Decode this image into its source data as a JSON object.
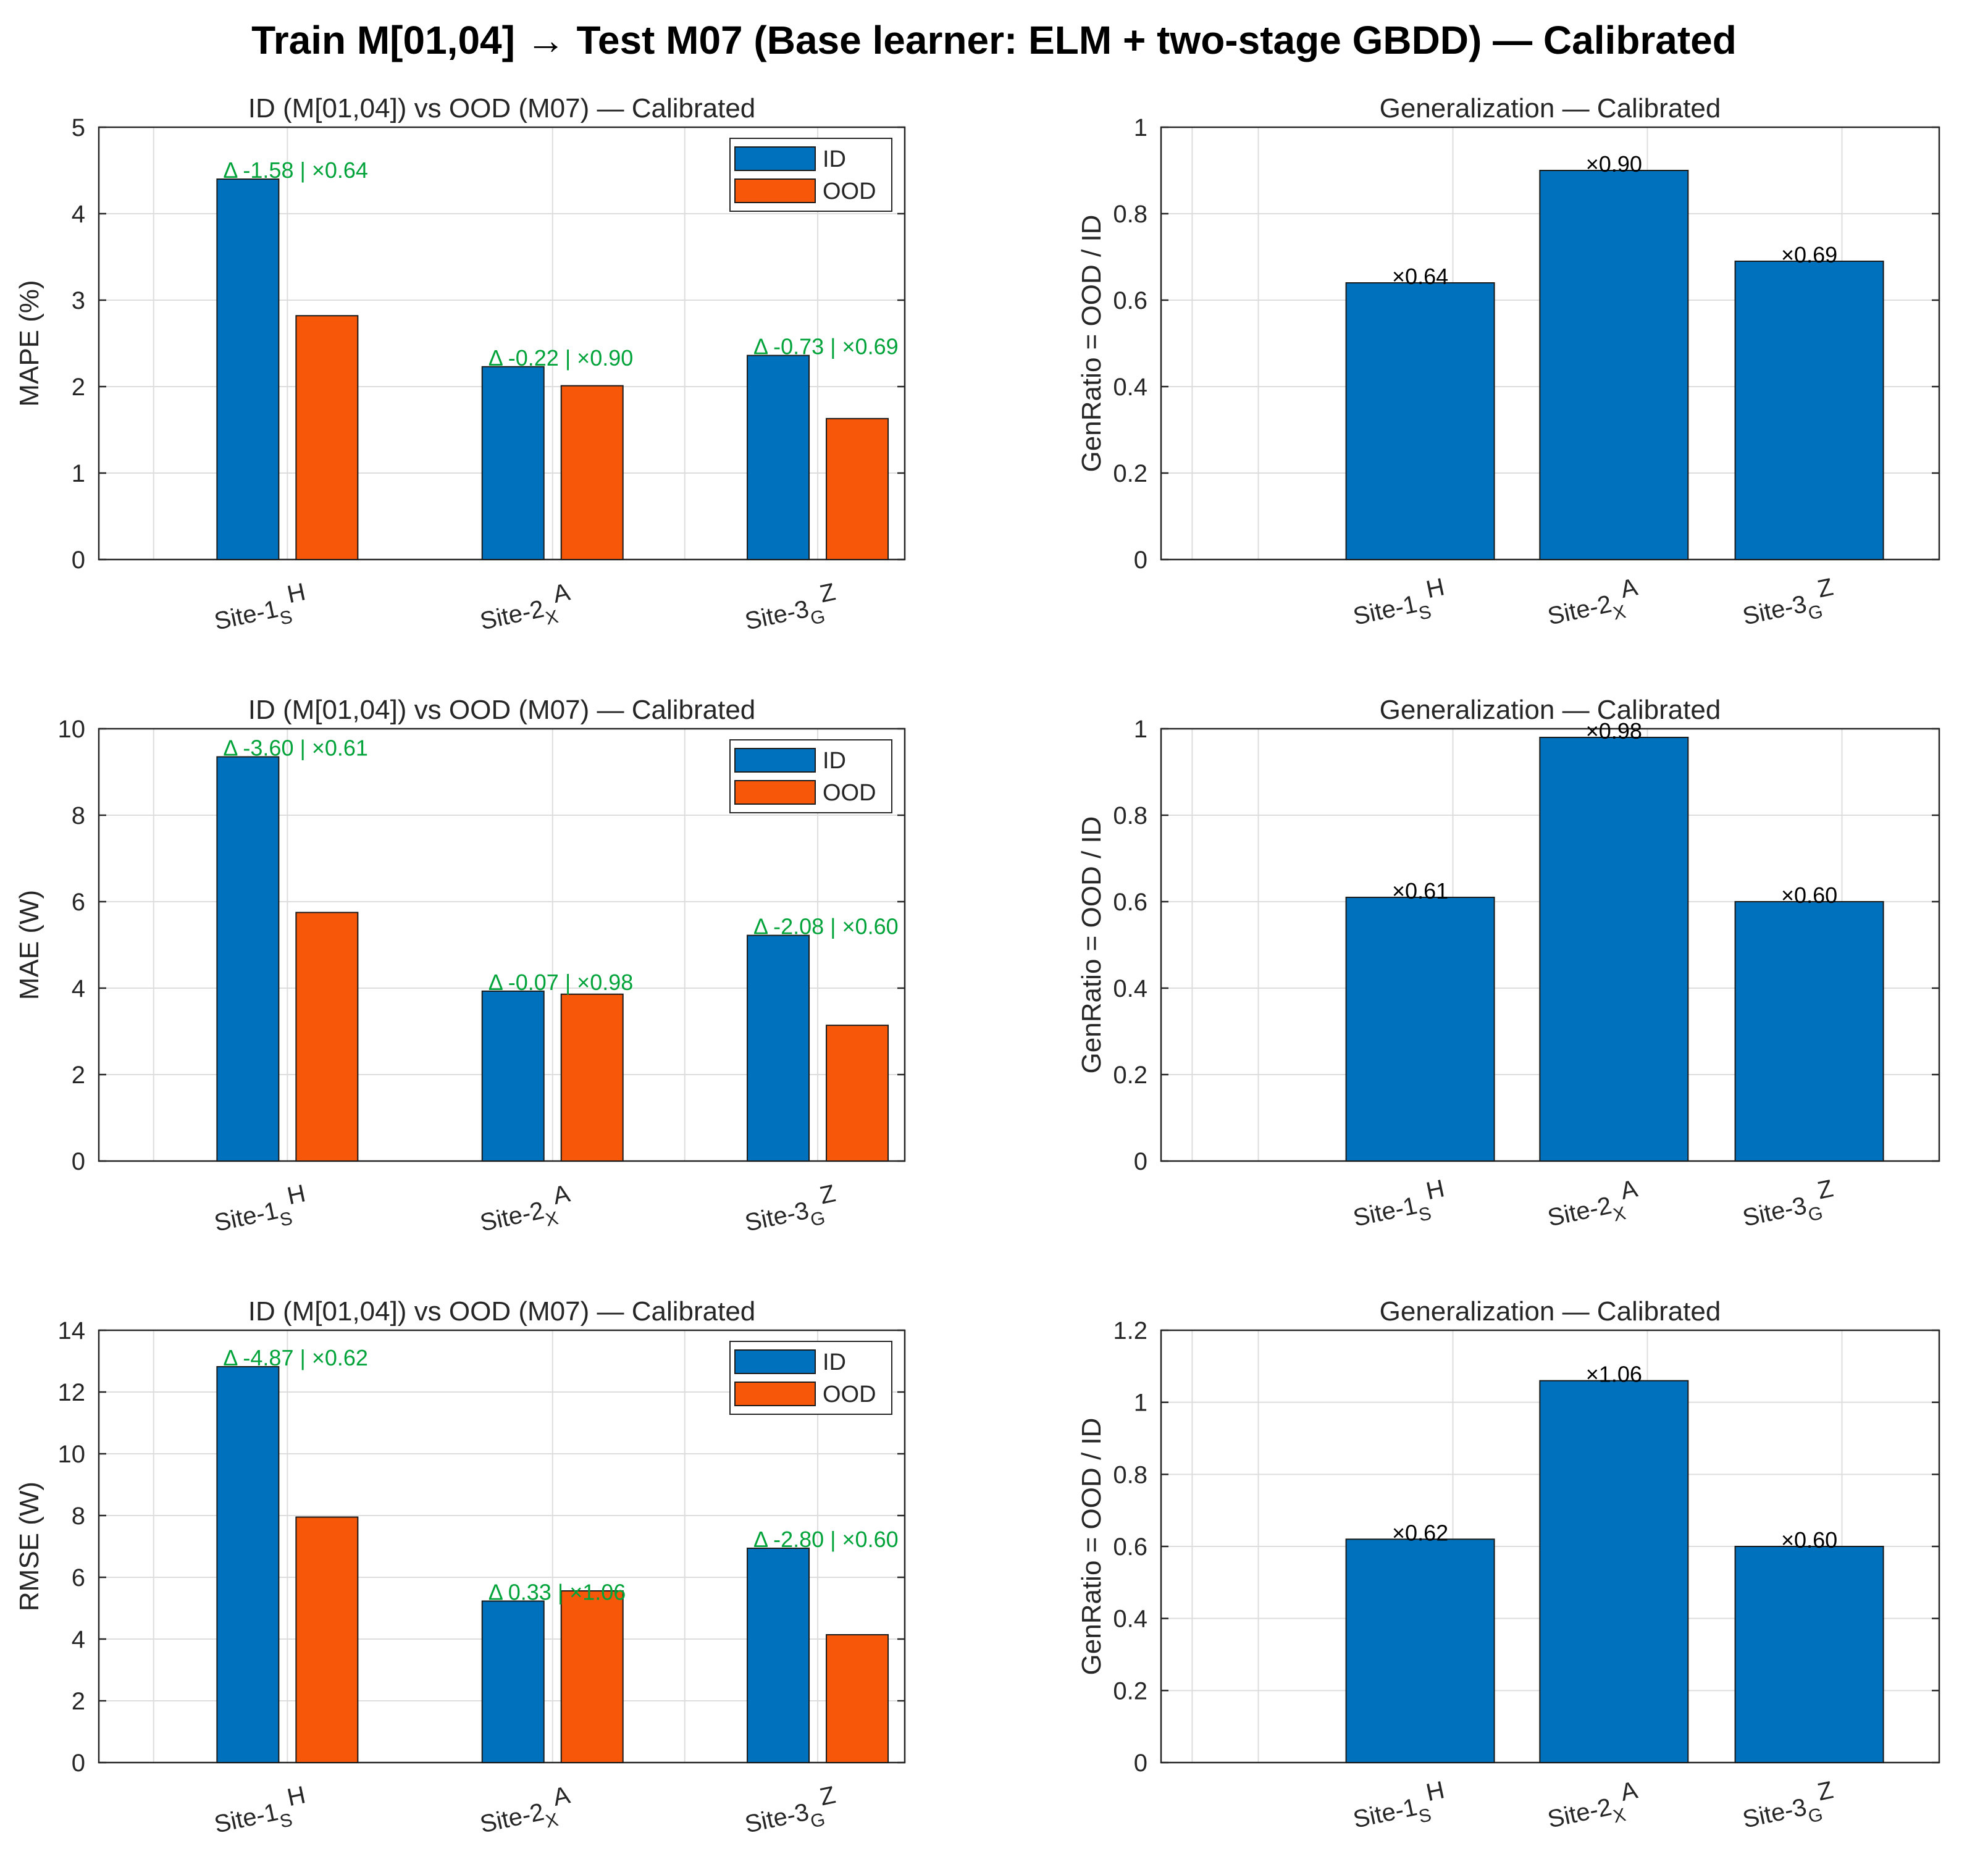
{
  "figure": {
    "title": "Train M[01,04] → Test M07  (Base learner: ELM + two-stage GBDD) — Calibrated"
  },
  "colors": {
    "id": "#0072BD",
    "ood": "#F75709",
    "annotation": "#00A33A",
    "grid": "#DDDDDD",
    "axis": "#262626"
  },
  "chart_data": [
    {
      "type": "bar",
      "panel": "left-1",
      "title": "ID (M[01,04]) vs OOD (M07) — Calibrated",
      "xlabel": "",
      "ylabel": "MAPE (%)",
      "ylim": [
        0,
        5
      ],
      "yticks": [
        0,
        1,
        2,
        3,
        4,
        5
      ],
      "ytick_labels": [
        "0",
        "1",
        "2",
        "3",
        "4",
        "5"
      ],
      "categories": [
        {
          "main": "Site-1",
          "sub": "S",
          "sup": "H"
        },
        {
          "main": "Site-2",
          "sub": "X",
          "sup": "A"
        },
        {
          "main": "Site-3",
          "sub": "G",
          "sup": "Z"
        }
      ],
      "series": [
        {
          "name": "ID",
          "values": [
            4.4,
            2.23,
            2.36
          ]
        },
        {
          "name": "OOD",
          "values": [
            2.82,
            2.01,
            1.63
          ]
        }
      ],
      "annotations": [
        "Δ -1.58 | ×0.64",
        "Δ -0.22 | ×0.90",
        "Δ -0.73 | ×0.69"
      ],
      "legend": {
        "entries": [
          "ID",
          "OOD"
        ],
        "location": "top-right"
      },
      "grid": true
    },
    {
      "type": "bar",
      "panel": "right-1",
      "title": "Generalization — Calibrated",
      "xlabel": "",
      "ylabel": "GenRatio = OOD / ID",
      "ylim": [
        0,
        1
      ],
      "yticks": [
        0,
        0.2,
        0.4,
        0.6,
        0.8,
        1
      ],
      "ytick_labels": [
        "0",
        "0.2",
        "0.4",
        "0.6",
        "0.8",
        "1"
      ],
      "categories": [
        {
          "main": "Site-1",
          "sub": "S",
          "sup": "H"
        },
        {
          "main": "Site-2",
          "sub": "X",
          "sup": "A"
        },
        {
          "main": "Site-3",
          "sub": "G",
          "sup": "Z"
        }
      ],
      "values": [
        0.64,
        0.9,
        0.69
      ],
      "labels": [
        "×0.64",
        "×0.90",
        "×0.69"
      ],
      "grid": true
    },
    {
      "type": "bar",
      "panel": "left-2",
      "title": "ID (M[01,04]) vs OOD (M07) — Calibrated",
      "xlabel": "",
      "ylabel": "MAE (W)",
      "ylim": [
        0,
        10
      ],
      "yticks": [
        0,
        2,
        4,
        6,
        8,
        10
      ],
      "ytick_labels": [
        "0",
        "2",
        "4",
        "6",
        "8",
        "10"
      ],
      "categories": [
        {
          "main": "Site-1",
          "sub": "S",
          "sup": "H"
        },
        {
          "main": "Site-2",
          "sub": "X",
          "sup": "A"
        },
        {
          "main": "Site-3",
          "sub": "G",
          "sup": "Z"
        }
      ],
      "series": [
        {
          "name": "ID",
          "values": [
            9.35,
            3.93,
            5.22
          ]
        },
        {
          "name": "OOD",
          "values": [
            5.75,
            3.86,
            3.14
          ]
        }
      ],
      "annotations": [
        "Δ -3.60 | ×0.61",
        "Δ -0.07 | ×0.98",
        "Δ -2.08 | ×0.60"
      ],
      "legend": {
        "entries": [
          "ID",
          "OOD"
        ],
        "location": "top-right"
      },
      "grid": true
    },
    {
      "type": "bar",
      "panel": "right-2",
      "title": "Generalization — Calibrated",
      "xlabel": "",
      "ylabel": "GenRatio = OOD / ID",
      "ylim": [
        0,
        1
      ],
      "yticks": [
        0,
        0.2,
        0.4,
        0.6,
        0.8,
        1
      ],
      "ytick_labels": [
        "0",
        "0.2",
        "0.4",
        "0.6",
        "0.8",
        "1"
      ],
      "categories": [
        {
          "main": "Site-1",
          "sub": "S",
          "sup": "H"
        },
        {
          "main": "Site-2",
          "sub": "X",
          "sup": "A"
        },
        {
          "main": "Site-3",
          "sub": "G",
          "sup": "Z"
        }
      ],
      "values": [
        0.61,
        0.98,
        0.6
      ],
      "labels": [
        "×0.61",
        "×0.98",
        "×0.60"
      ],
      "grid": true
    },
    {
      "type": "bar",
      "panel": "left-3",
      "title": "ID (M[01,04]) vs OOD (M07) — Calibrated",
      "xlabel": "",
      "ylabel": "RMSE (W)",
      "ylim": [
        0,
        14
      ],
      "yticks": [
        0,
        2,
        4,
        6,
        8,
        10,
        12,
        14
      ],
      "ytick_labels": [
        "0",
        "2",
        "4",
        "6",
        "8",
        "10",
        "12",
        "14"
      ],
      "categories": [
        {
          "main": "Site-1",
          "sub": "S",
          "sup": "H"
        },
        {
          "main": "Site-2",
          "sub": "X",
          "sup": "A"
        },
        {
          "main": "Site-3",
          "sub": "G",
          "sup": "Z"
        }
      ],
      "series": [
        {
          "name": "ID",
          "values": [
            12.82,
            5.23,
            6.94
          ]
        },
        {
          "name": "OOD",
          "values": [
            7.95,
            5.56,
            4.14
          ]
        }
      ],
      "annotations": [
        "Δ -4.87 | ×0.62",
        "Δ 0.33 | ×1.06",
        "Δ -2.80 | ×0.60"
      ],
      "legend": {
        "entries": [
          "ID",
          "OOD"
        ],
        "location": "top-right"
      },
      "grid": true
    },
    {
      "type": "bar",
      "panel": "right-3",
      "title": "Generalization — Calibrated",
      "xlabel": "",
      "ylabel": "GenRatio = OOD / ID",
      "ylim": [
        0,
        1.2
      ],
      "yticks": [
        0,
        0.2,
        0.4,
        0.6,
        0.8,
        1,
        1.2
      ],
      "ytick_labels": [
        "0",
        "0.2",
        "0.4",
        "0.6",
        "0.8",
        "1",
        "1.2"
      ],
      "categories": [
        {
          "main": "Site-1",
          "sub": "S",
          "sup": "H"
        },
        {
          "main": "Site-2",
          "sub": "X",
          "sup": "A"
        },
        {
          "main": "Site-3",
          "sub": "G",
          "sup": "Z"
        }
      ],
      "values": [
        0.62,
        1.06,
        0.6
      ],
      "labels": [
        "×0.62",
        "×1.06",
        "×0.60"
      ],
      "grid": true
    }
  ]
}
